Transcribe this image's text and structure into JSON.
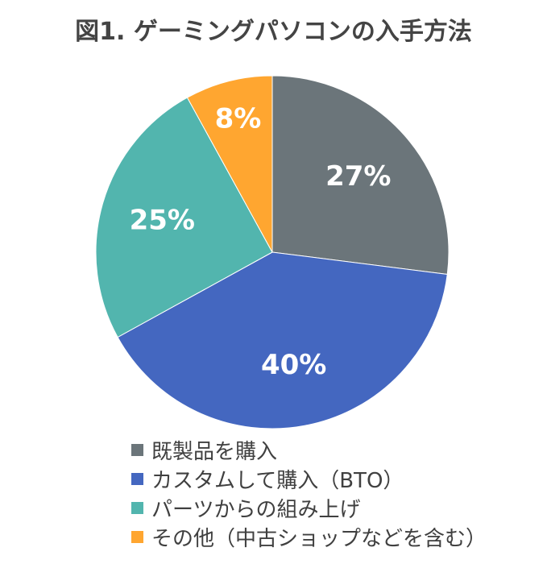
{
  "chart_data": {
    "type": "pie",
    "title": "図1. ゲーミングパソコンの入手方法",
    "start_angle_deg": 0,
    "direction": "clockwise",
    "slices": [
      {
        "label": "既製品を購入",
        "value": 27,
        "value_label": "27%",
        "color": "#6b757a"
      },
      {
        "label": "カスタムして購入（BTO）",
        "value": 40,
        "value_label": "40%",
        "color": "#4467c0"
      },
      {
        "label": "パーツからの組み上げ",
        "value": 25,
        "value_label": "25%",
        "color": "#52b5ae"
      },
      {
        "label": "その他（中古ショップなどを含む）",
        "value": 8,
        "value_label": "8%",
        "color": "#ffa630"
      }
    ],
    "legend_position": "bottom"
  }
}
